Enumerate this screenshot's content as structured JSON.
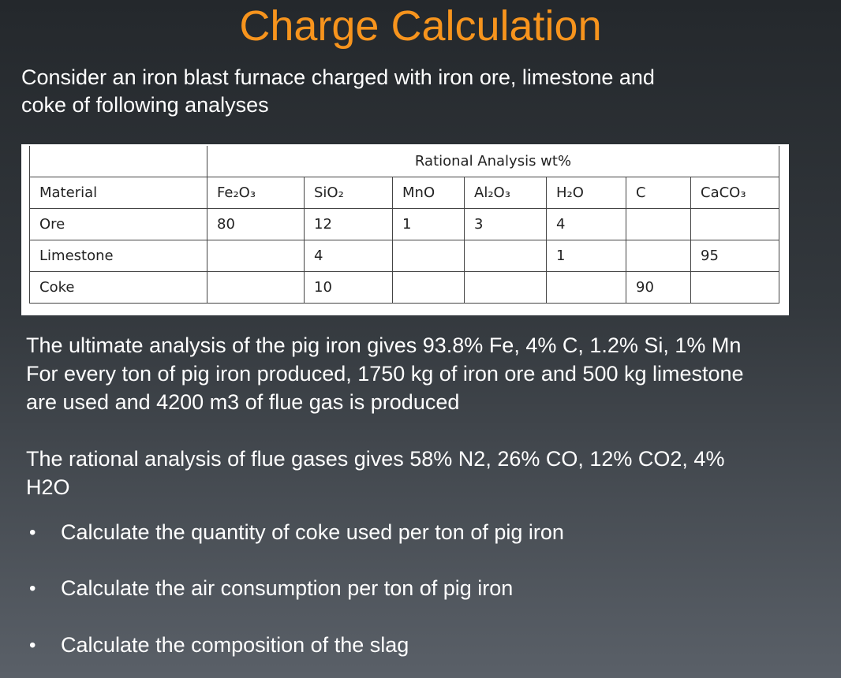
{
  "slide": {
    "title": "Charge Calculation",
    "intro": [
      "Consider an iron blast furnace charged with iron ore, limestone and",
      "coke of following analyses"
    ],
    "table": {
      "caption": "Rational Analysis wt%",
      "header": [
        "Material",
        "Fe₂O₃",
        "SiO₂",
        "MnO",
        "Al₂O₃",
        "H₂O",
        "C",
        "CaCO₃"
      ],
      "rows": [
        [
          "Ore",
          80,
          12,
          1,
          3,
          4,
          null,
          null
        ],
        [
          "Limestone",
          null,
          4,
          null,
          null,
          1,
          null,
          95
        ],
        [
          "Coke",
          null,
          10,
          null,
          null,
          null,
          90,
          null
        ]
      ]
    },
    "paragraphs": [
      [
        "The ultimate analysis of the pig iron gives 93.8% Fe, 4% C, 1.2% Si, 1% Mn",
        "For every ton of pig iron produced, 1750 kg of iron ore and 500 kg limestone",
        "are used and 4200 m3 of flue gas is produced"
      ],
      [
        "The rational analysis of flue gases gives 58% N2, 26% CO, 12% CO2, 4%",
        "H2O"
      ]
    ],
    "bullets": [
      "Calculate the quantity of coke used per ton of pig iron",
      "Calculate the air consumption per ton of pig iron",
      "Calculate the composition of the slag"
    ]
  }
}
